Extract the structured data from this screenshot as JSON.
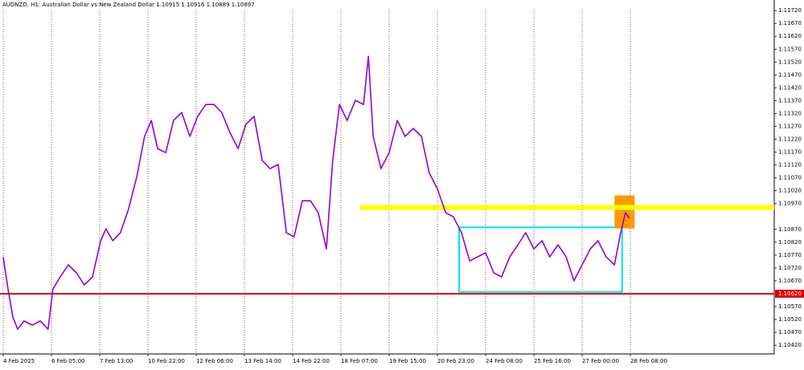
{
  "chart_data": {
    "type": "line",
    "title": "AUDNZD, H1:  Australian Dollar vs New Zealand Dollar  1.10915 1.10916 1.10889 1.10897",
    "xlim": [
      0,
      16.0
    ],
    "ylim": [
      1.10386,
      1.11761
    ],
    "xticks": [
      {
        "value": 0,
        "label": "4 Feb 2025"
      },
      {
        "value": 1,
        "label": "6 Feb 05:00"
      },
      {
        "value": 2,
        "label": "7 Feb 13:00"
      },
      {
        "value": 3,
        "label": "10 Feb 22:00"
      },
      {
        "value": 4,
        "label": "12 Feb 06:00"
      },
      {
        "value": 5,
        "label": "13 Feb 14:00"
      },
      {
        "value": 6,
        "label": "14 Feb 22:00"
      },
      {
        "value": 7,
        "label": "18 Feb 07:00"
      },
      {
        "value": 8,
        "label": "19 Feb 15:00"
      },
      {
        "value": 9,
        "label": "20 Feb 23:00"
      },
      {
        "value": 10,
        "label": "24 Feb 08:00"
      },
      {
        "value": 11,
        "label": "25 Feb 16:00"
      },
      {
        "value": 12,
        "label": "27 Feb 00:00"
      },
      {
        "value": 13,
        "label": "28 Feb 08:00"
      }
    ],
    "yticks": [
      {
        "value": 1.1172,
        "label": "1.11720"
      },
      {
        "value": 1.1167,
        "label": "1.11670"
      },
      {
        "value": 1.1162,
        "label": "1.11620"
      },
      {
        "value": 1.1157,
        "label": "1.11570"
      },
      {
        "value": 1.1152,
        "label": "1.11520"
      },
      {
        "value": 1.1147,
        "label": "1.11470"
      },
      {
        "value": 1.1142,
        "label": "1.11420"
      },
      {
        "value": 1.1137,
        "label": "1.11370"
      },
      {
        "value": 1.1132,
        "label": "1.11320"
      },
      {
        "value": 1.1127,
        "label": "1.11270"
      },
      {
        "value": 1.1122,
        "label": "1.11220"
      },
      {
        "value": 1.1117,
        "label": "1.11170"
      },
      {
        "value": 1.1112,
        "label": "1.11120"
      },
      {
        "value": 1.1107,
        "label": "1.11070"
      },
      {
        "value": 1.1102,
        "label": "1.11020"
      },
      {
        "value": 1.1097,
        "label": "1.10970"
      },
      {
        "value": 1.1087,
        "label": "1.10870"
      },
      {
        "value": 1.1082,
        "label": "1.10820"
      },
      {
        "value": 1.1077,
        "label": "1.10770"
      },
      {
        "value": 1.1072,
        "label": "1.10720"
      },
      {
        "value": 1.1067,
        "label": "1.10670"
      },
      {
        "value": 1.1057,
        "label": "1.10570"
      },
      {
        "value": 1.1052,
        "label": "1.10520"
      },
      {
        "value": 1.1047,
        "label": "1.10470"
      },
      {
        "value": 1.1042,
        "label": "1.10420"
      }
    ],
    "x": [
      0,
      0.1,
      0.2,
      0.3,
      0.43,
      0.6,
      0.77,
      0.93,
      1.03,
      1.18,
      1.35,
      1.52,
      1.68,
      1.85,
      2.02,
      2.13,
      2.27,
      2.43,
      2.6,
      2.77,
      2.93,
      3.07,
      3.2,
      3.37,
      3.53,
      3.7,
      3.87,
      4.03,
      4.2,
      4.37,
      4.53,
      4.7,
      4.87,
      5.03,
      5.2,
      5.37,
      5.53,
      5.7,
      5.87,
      6.03,
      6.2,
      6.37,
      6.53,
      6.7,
      6.83,
      6.97,
      7.13,
      7.3,
      7.47,
      7.57,
      7.67,
      7.83,
      8,
      8.17,
      8.33,
      8.5,
      8.67,
      8.83,
      9,
      9.17,
      9.33,
      9.5,
      9.67,
      9.83,
      10,
      10.17,
      10.33,
      10.5,
      10.67,
      10.83,
      11,
      11.17,
      11.33,
      11.5,
      11.67,
      11.83,
      12,
      12.17,
      12.33,
      12.5,
      12.67,
      12.8,
      12.9,
      12.98
    ],
    "series": [
      {
        "color": "#9400d3",
        "values": [
          1.10763,
          1.10638,
          1.10529,
          1.10482,
          1.10514,
          1.10498,
          1.10514,
          1.10482,
          1.10638,
          1.10685,
          1.10732,
          1.10701,
          1.10654,
          1.10685,
          1.10826,
          1.10872,
          1.10826,
          1.10857,
          1.1095,
          1.11075,
          1.11231,
          1.11293,
          1.11184,
          1.11168,
          1.11293,
          1.11324,
          1.11231,
          1.11309,
          1.11355,
          1.11355,
          1.11324,
          1.11246,
          1.11184,
          1.11278,
          1.11309,
          1.11137,
          1.11106,
          1.11122,
          1.10857,
          1.10841,
          1.10981,
          1.10981,
          1.10935,
          1.10794,
          1.11137,
          1.11355,
          1.11293,
          1.11371,
          1.11355,
          1.11542,
          1.11231,
          1.11106,
          1.11168,
          1.11293,
          1.11231,
          1.11262,
          1.11231,
          1.1109,
          1.11028,
          1.10935,
          1.10919,
          1.10857,
          1.10747,
          1.10763,
          1.10779,
          1.10701,
          1.10685,
          1.10763,
          1.1081,
          1.10857,
          1.10794,
          1.10826,
          1.10763,
          1.1081,
          1.10763,
          1.1067,
          1.10732,
          1.10794,
          1.10826,
          1.10763,
          1.10732,
          1.10857,
          1.10935,
          1.10913
        ]
      }
    ],
    "levels": [
      {
        "value": 1.1062,
        "label": "1.10620",
        "color": "#e00000"
      },
      {
        "value": 1.10955,
        "from": 7.4,
        "color": "#ffff00"
      }
    ],
    "boxes": [
      {
        "x": [
          9.45,
          12.83
        ],
        "y": [
          1.10627,
          1.10878
        ],
        "color": "#00e5ee"
      },
      {
        "x": [
          12.68,
          13.08
        ],
        "y": [
          1.10875,
          1.11
        ],
        "color": "#ff9900"
      }
    ]
  }
}
